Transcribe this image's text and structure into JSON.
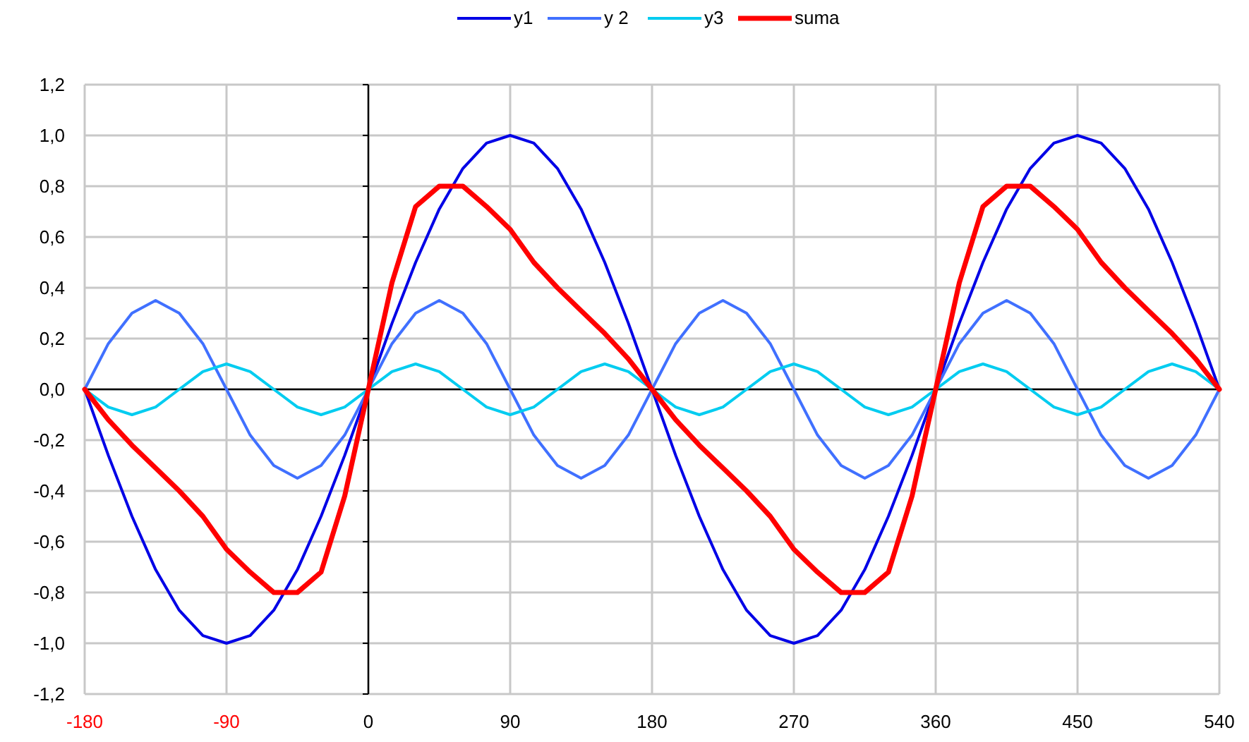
{
  "chart_data": {
    "type": "line",
    "x": [
      -180,
      -165,
      -150,
      -135,
      -120,
      -105,
      -90,
      -75,
      -60,
      -45,
      -30,
      -15,
      0,
      15,
      30,
      45,
      60,
      75,
      90,
      105,
      120,
      135,
      150,
      165,
      180,
      195,
      210,
      225,
      240,
      255,
      270,
      285,
      300,
      315,
      330,
      345,
      360,
      375,
      390,
      405,
      420,
      435,
      450,
      465,
      480,
      495,
      510,
      525,
      540
    ],
    "series": [
      {
        "name": "y1",
        "color": "#0000e6",
        "values": [
          0,
          -0.26,
          -0.5,
          -0.71,
          -0.87,
          -0.97,
          -1,
          -0.97,
          -0.87,
          -0.71,
          -0.5,
          -0.26,
          0,
          0.26,
          0.5,
          0.71,
          0.87,
          0.97,
          1,
          0.97,
          0.87,
          0.71,
          0.5,
          0.26,
          0,
          -0.26,
          -0.5,
          -0.71,
          -0.87,
          -0.97,
          -1,
          -0.97,
          -0.87,
          -0.71,
          -0.5,
          -0.26,
          0,
          0.26,
          0.5,
          0.71,
          0.87,
          0.97,
          1,
          0.97,
          0.87,
          0.71,
          0.5,
          0.26,
          0
        ]
      },
      {
        "name": "y 2",
        "color": "#4070ff",
        "values": [
          0,
          0.18,
          0.3,
          0.35,
          0.3,
          0.18,
          0,
          -0.18,
          -0.3,
          -0.35,
          -0.3,
          -0.18,
          0,
          0.18,
          0.3,
          0.35,
          0.3,
          0.18,
          0,
          -0.18,
          -0.3,
          -0.35,
          -0.3,
          -0.18,
          0,
          0.18,
          0.3,
          0.35,
          0.3,
          0.18,
          0,
          -0.18,
          -0.3,
          -0.35,
          -0.3,
          -0.18,
          0,
          0.18,
          0.3,
          0.35,
          0.3,
          0.18,
          0,
          -0.18,
          -0.3,
          -0.35,
          -0.3,
          -0.18,
          0
        ]
      },
      {
        "name": "y3",
        "color": "#00ccf0",
        "values": [
          0,
          -0.07,
          -0.1,
          -0.07,
          0,
          0.07,
          0.1,
          0.07,
          0,
          -0.07,
          -0.1,
          -0.07,
          0,
          0.07,
          0.1,
          0.07,
          0,
          -0.07,
          -0.1,
          -0.07,
          0,
          0.07,
          0.1,
          0.07,
          0,
          -0.07,
          -0.1,
          -0.07,
          0,
          0.07,
          0.1,
          0.07,
          0,
          -0.07,
          -0.1,
          -0.07,
          0,
          0.07,
          0.1,
          0.07,
          0,
          -0.07,
          -0.1,
          -0.07,
          0,
          0.07,
          0.1,
          0.07,
          0
        ]
      },
      {
        "name": "suma",
        "color": "#ff0000",
        "values": [
          0,
          -0.12,
          -0.22,
          -0.31,
          -0.4,
          -0.5,
          -0.63,
          -0.72,
          -0.8,
          -0.8,
          -0.72,
          -0.42,
          0,
          0.42,
          0.72,
          0.8,
          0.8,
          0.72,
          0.63,
          0.5,
          0.4,
          0.31,
          0.22,
          0.12,
          0,
          -0.12,
          -0.22,
          -0.31,
          -0.4,
          -0.5,
          -0.63,
          -0.72,
          -0.8,
          -0.8,
          -0.72,
          -0.42,
          0,
          0.42,
          0.72,
          0.8,
          0.8,
          0.72,
          0.63,
          0.5,
          0.4,
          0.31,
          0.22,
          0.12,
          0
        ]
      }
    ],
    "xlim": [
      -180,
      540
    ],
    "xticks": [
      -180,
      -90,
      0,
      90,
      180,
      270,
      360,
      450,
      540
    ],
    "ylim": [
      -1.2,
      1.2
    ],
    "yticks": [
      {
        "value": -1.2,
        "label": "-1,2"
      },
      {
        "value": -1,
        "label": "-1,0"
      },
      {
        "value": -0.8,
        "label": "-0,8"
      },
      {
        "value": -0.6,
        "label": "-0,6"
      },
      {
        "value": -0.4,
        "label": "-0,4"
      },
      {
        "value": -0.2,
        "label": "-0,2"
      },
      {
        "value": 0,
        "label": "0,0"
      },
      {
        "value": 0.2,
        "label": "0,2"
      },
      {
        "value": 0.4,
        "label": "0,4"
      },
      {
        "value": 0.6,
        "label": "0,6"
      },
      {
        "value": 0.8,
        "label": "0,8"
      },
      {
        "value": 1,
        "label": "1,0"
      },
      {
        "value": 1.2,
        "label": "1,2"
      }
    ],
    "grid": true,
    "legend": "top",
    "marker": "none",
    "line_style": "solid"
  }
}
